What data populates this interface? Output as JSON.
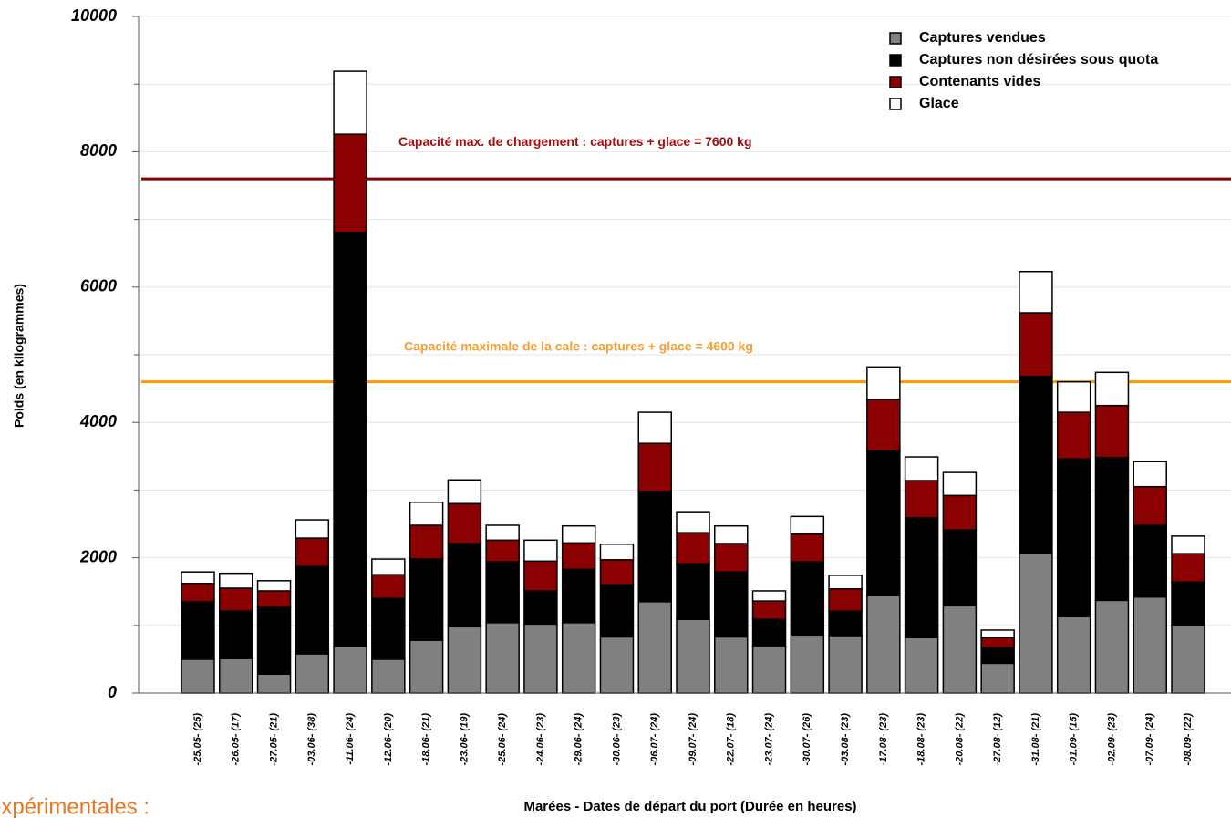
{
  "chart_data": {
    "type": "stacked_bar",
    "ylabel": "Poids (en kilogrammes)",
    "xlabel": "Marées - Dates de départ du port (Durée en heures)",
    "categories": [
      "-25.05- (25)",
      "-26.05- (17)",
      "-27.05- (21)",
      "-03.06- (38)",
      "-11.06- (24)",
      "-12.06- (20)",
      "-18.06- (21)",
      "-23.06- (19)",
      "-25.06- (24)",
      "-24.06- (23)",
      "-29.06- (24)",
      "-30.06- (23)",
      "-06.07- (24)",
      "-09.07- (24)",
      "-22.07- (18)",
      "-23.07- (24)",
      "-30.07- (26)",
      "-03.08- (23)",
      "-17.08- (23)",
      "-18.08- (23)",
      "-20.08- (22)",
      "-27.08- (12)",
      "-31.08- (21)",
      "-01.09- (15)",
      "-02.09- (23)",
      "-07.09- (24)",
      "-08.09- (22)"
    ],
    "series": [
      {
        "name": "Captures vendues",
        "color": "#808080",
        "values": [
          500,
          510,
          280,
          580,
          690,
          500,
          780,
          980,
          1040,
          1020,
          1040,
          830,
          1350,
          1090,
          830,
          700,
          860,
          850,
          1440,
          820,
          1290,
          440,
          2060,
          1130,
          1370,
          1420,
          1010
        ]
      },
      {
        "name": "Captures non désirées sous quota",
        "color": "#000000",
        "values": [
          850,
          700,
          990,
          1290,
          6120,
          900,
          1200,
          1230,
          900,
          490,
          790,
          770,
          1630,
          820,
          960,
          390,
          1080,
          360,
          2140,
          1770,
          1120,
          230,
          2620,
          2330,
          2110,
          1060,
          630
        ]
      },
      {
        "name": "Contenants vides",
        "color": "#8b0000",
        "values": [
          270,
          340,
          240,
          420,
          1450,
          350,
          500,
          590,
          320,
          440,
          390,
          370,
          710,
          460,
          420,
          270,
          410,
          330,
          760,
          550,
          510,
          150,
          940,
          690,
          770,
          570,
          420
        ]
      },
      {
        "name": "Glace",
        "color": "#ffffff",
        "values": [
          170,
          220,
          150,
          270,
          930,
          230,
          340,
          350,
          220,
          310,
          250,
          230,
          460,
          310,
          260,
          150,
          260,
          200,
          480,
          350,
          340,
          110,
          610,
          450,
          490,
          370,
          260
        ]
      }
    ],
    "reference_lines": [
      {
        "value": 7600,
        "label": "Capacité max. de chargement : captures + glace = 7600 kg",
        "color": "#8b0000"
      },
      {
        "value": 4600,
        "label": "Capacité maximale de la cale : captures + glace = 4600 kg",
        "color": "#ff9900"
      }
    ],
    "ylim": [
      0,
      10000
    ],
    "yticks": [
      0,
      2000,
      4000,
      6000,
      8000,
      10000
    ],
    "minor_yticks": [
      1000,
      3000,
      5000,
      7000,
      9000
    ],
    "grid": true,
    "legend": "upper right",
    "annotation": "expérimentales :"
  }
}
